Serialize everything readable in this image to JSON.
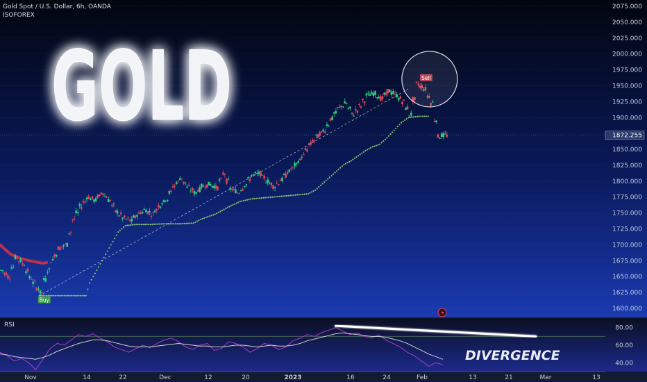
{
  "header": {
    "symbol": "Gold Spot / U.S. Dollar, 6h, OANDA",
    "author": "ISOFOREX"
  },
  "overlay": {
    "headline": "GOLD",
    "divergence": "DIVERGENCE",
    "buy_label": "Buy",
    "sell_label": "Sell"
  },
  "rsi_panel": {
    "label": "RSI"
  },
  "colors": {
    "up": "#26d07c",
    "down": "#e0455a",
    "trail_bear": "#c0304a",
    "trail_bull": "#8fd06f",
    "rsi": "#b03ad0",
    "rsi_ma": "#d0d0d0",
    "accent": "#ffffff"
  },
  "chart_data": [
    {
      "type": "line",
      "name": "price",
      "ylim": [
        1595,
        2080
      ],
      "yticks": [
        1600,
        1625,
        1650,
        1675,
        1700,
        1725,
        1750,
        1775,
        1800,
        1825,
        1850,
        1875,
        1900,
        1925,
        1950,
        1975,
        2000,
        2025,
        2050,
        2075
      ],
      "ytick_labels": [
        "1600.000",
        "1625.000",
        "1650.000",
        "1675.000",
        "1700.000",
        "1725.000",
        "1750.000",
        "1775.000",
        "1800.000",
        "1825.000",
        "1850.000",
        "1875.000",
        "1900.000",
        "1925.000",
        "1950.000",
        "1975.000",
        "2000.000",
        "2025.000",
        "2050.000",
        "2075.000"
      ],
      "last_price": 1872.255,
      "last_price_label": "1872.255",
      "xtick_labels": [
        "Nov",
        "14",
        "22",
        "Dec",
        "12",
        "20",
        "2023",
        "16",
        "24",
        "Feb",
        "13",
        "21",
        "Mar",
        "13"
      ],
      "price_path": [
        [
          0,
          1660
        ],
        [
          2,
          1650
        ],
        [
          4,
          1680
        ],
        [
          6,
          1670
        ],
        [
          8,
          1648
        ],
        [
          10,
          1632
        ],
        [
          11,
          1625
        ],
        [
          12,
          1645
        ],
        [
          14,
          1675
        ],
        [
          16,
          1695
        ],
        [
          18,
          1700
        ],
        [
          20,
          1740
        ],
        [
          22,
          1760
        ],
        [
          24,
          1775
        ],
        [
          26,
          1770
        ],
        [
          28,
          1782
        ],
        [
          30,
          1770
        ],
        [
          32,
          1752
        ],
        [
          34,
          1742
        ],
        [
          36,
          1738
        ],
        [
          38,
          1748
        ],
        [
          40,
          1755
        ],
        [
          42,
          1748
        ],
        [
          44,
          1762
        ],
        [
          46,
          1772
        ],
        [
          48,
          1792
        ],
        [
          50,
          1805
        ],
        [
          52,
          1790
        ],
        [
          54,
          1782
        ],
        [
          56,
          1792
        ],
        [
          58,
          1795
        ],
        [
          60,
          1790
        ],
        [
          62,
          1812
        ],
        [
          64,
          1788
        ],
        [
          66,
          1782
        ],
        [
          68,
          1795
        ],
        [
          70,
          1810
        ],
        [
          72,
          1812
        ],
        [
          74,
          1800
        ],
        [
          76,
          1792
        ],
        [
          78,
          1802
        ],
        [
          80,
          1815
        ],
        [
          82,
          1825
        ],
        [
          84,
          1840
        ],
        [
          86,
          1858
        ],
        [
          88,
          1870
        ],
        [
          90,
          1880
        ],
        [
          92,
          1898
        ],
        [
          94,
          1915
        ],
        [
          96,
          1922
        ],
        [
          98,
          1905
        ],
        [
          100,
          1918
        ],
        [
          102,
          1935
        ],
        [
          104,
          1938
        ],
        [
          106,
          1930
        ],
        [
          108,
          1942
        ],
        [
          110,
          1935
        ],
        [
          112,
          1925
        ],
        [
          114,
          1905
        ],
        [
          115,
          1928
        ],
        [
          116,
          1953
        ],
        [
          118,
          1945
        ],
        [
          120,
          1923
        ],
        [
          122,
          1870
        ],
        [
          123,
          1872
        ]
      ],
      "trailing_bear": [
        [
          0,
          1700
        ],
        [
          3,
          1685
        ],
        [
          6,
          1678
        ],
        [
          9,
          1674
        ],
        [
          12,
          1671
        ],
        [
          13,
          1672
        ]
      ],
      "trailing_bull": [
        [
          11,
          1620
        ],
        [
          16,
          1620
        ],
        [
          20,
          1620
        ],
        [
          24,
          1620
        ],
        [
          25,
          1640
        ],
        [
          27,
          1660
        ],
        [
          29,
          1680
        ],
        [
          31,
          1700
        ],
        [
          33,
          1720
        ],
        [
          35,
          1730
        ],
        [
          38,
          1732
        ],
        [
          42,
          1732
        ],
        [
          46,
          1733
        ],
        [
          50,
          1733
        ],
        [
          54,
          1734
        ],
        [
          56,
          1740
        ],
        [
          60,
          1748
        ],
        [
          64,
          1760
        ],
        [
          67,
          1768
        ],
        [
          70,
          1772
        ],
        [
          74,
          1774
        ],
        [
          78,
          1776
        ],
        [
          82,
          1778
        ],
        [
          86,
          1780
        ],
        [
          88,
          1786
        ],
        [
          90,
          1796
        ],
        [
          92,
          1806
        ],
        [
          94,
          1816
        ],
        [
          96,
          1826
        ],
        [
          98,
          1832
        ],
        [
          100,
          1840
        ],
        [
          102,
          1848
        ],
        [
          104,
          1854
        ],
        [
          106,
          1858
        ],
        [
          108,
          1868
        ],
        [
          110,
          1880
        ],
        [
          112,
          1892
        ],
        [
          114,
          1900
        ],
        [
          117,
          1902
        ],
        [
          120,
          1902
        ]
      ],
      "buy_signal": [
        11,
        1620
      ],
      "sell_signal": [
        117,
        1955
      ],
      "dashed_trend": [
        [
          11,
          1620
        ],
        [
          114,
          1945
        ]
      ]
    },
    {
      "type": "line",
      "name": "RSI",
      "ylim": [
        30,
        90
      ],
      "yticks": [
        40,
        60,
        80
      ],
      "ytick_labels": [
        "40.00",
        "60.00",
        "80.00"
      ],
      "bands": [
        30,
        70
      ],
      "series": [
        {
          "name": "",
          "values": [
            52,
            48,
            42,
            45,
            40,
            32,
            44,
            56,
            62,
            60,
            66,
            72,
            70,
            73,
            68,
            64,
            58,
            55,
            52,
            56,
            60,
            57,
            62,
            66,
            68,
            64,
            58,
            55,
            60,
            62,
            54,
            56,
            64,
            62,
            58,
            52,
            56,
            62,
            60,
            55,
            58,
            65,
            68,
            72,
            70,
            74,
            77,
            80,
            76,
            72,
            74,
            70,
            68,
            72,
            66,
            62,
            58,
            52,
            48,
            42,
            36,
            40,
            38
          ]
        },
        {
          "name": "",
          "values": [
            50,
            49,
            47,
            46,
            45,
            44,
            46,
            49,
            53,
            56,
            59,
            62,
            64,
            66,
            66,
            65,
            63,
            61,
            59,
            58,
            58,
            58,
            59,
            60,
            61,
            62,
            61,
            60,
            59,
            59,
            58,
            58,
            59,
            60,
            60,
            59,
            58,
            59,
            60,
            59,
            59,
            60,
            62,
            65,
            67,
            69,
            71,
            73,
            74,
            73,
            72,
            71,
            70,
            70,
            69,
            67,
            65,
            62,
            58,
            54,
            50,
            47,
            44
          ]
        }
      ],
      "divergence_line": [
        [
          47,
          82
        ],
        [
          75,
          70
        ]
      ]
    }
  ]
}
